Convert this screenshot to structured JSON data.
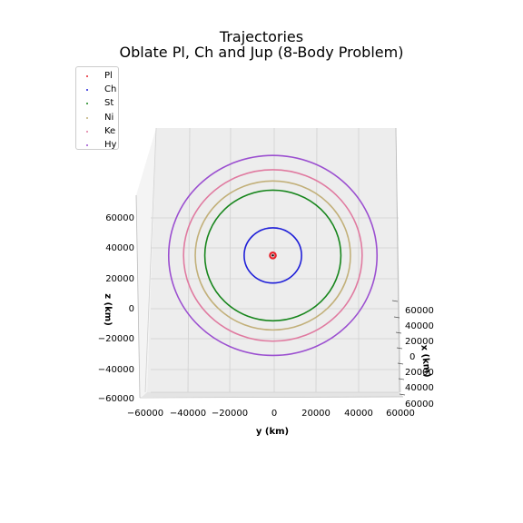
{
  "chart_data": {
    "type": "line",
    "projection": "3d",
    "title": "Trajectories",
    "subtitle": "Oblate Pl, Ch and Jup (8-Body Problem)",
    "xlabel": "x (km)",
    "ylabel": "y (km)",
    "zlabel": "z (km)",
    "xlim": [
      -60000,
      60000
    ],
    "ylim": [
      -60000,
      60000
    ],
    "zlim": [
      -60000,
      60000
    ],
    "x_ticks": [
      "60000",
      "40000",
      "20000",
      "0",
      "20000",
      "40000",
      "60000"
    ],
    "y_ticks": [
      "−60000",
      "−40000",
      "−20000",
      "0",
      "20000",
      "40000",
      "60000"
    ],
    "z_ticks": [
      "60000",
      "40000",
      "20000",
      "0",
      "−20000",
      "−40000",
      "−60000"
    ],
    "legend_position": "upper-left",
    "grid": true,
    "series": [
      {
        "name": "Pl",
        "color": "#e8212b",
        "orbit_radius_km": 800,
        "center_height_km": 34000
      },
      {
        "name": "Ch",
        "color": "#1f1fd8",
        "orbit_radius_km": 13500,
        "center_height_km": 34000
      },
      {
        "name": "St",
        "color": "#18861d",
        "orbit_radius_km": 32000,
        "center_height_km": 34000
      },
      {
        "name": "Ni",
        "color": "#c2b07a",
        "orbit_radius_km": 36500,
        "center_height_km": 34000
      },
      {
        "name": "Ke",
        "color": "#e07aa0",
        "orbit_radius_km": 42000,
        "center_height_km": 34000
      },
      {
        "name": "Hy",
        "color": "#9b4fd0",
        "orbit_radius_km": 49000,
        "center_height_km": 34000
      }
    ]
  }
}
